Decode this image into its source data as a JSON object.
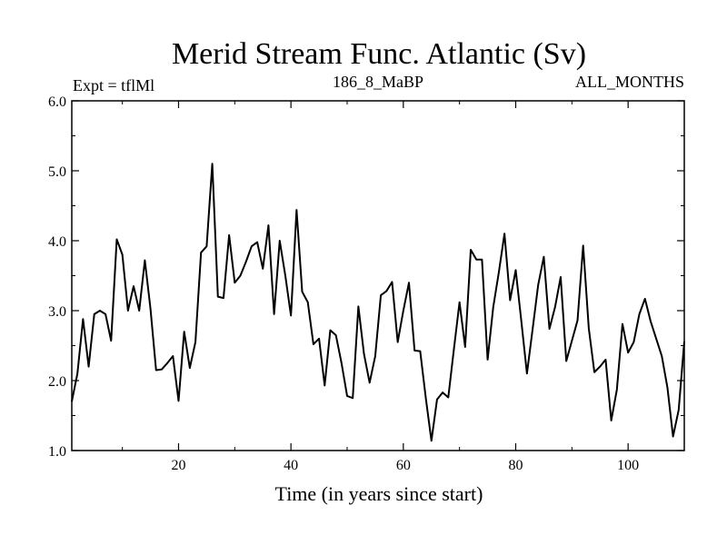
{
  "chart_data": {
    "type": "line",
    "title": "Merid Stream Func. Atlantic (Sv)",
    "subtitle_left": "Expt = tflMl",
    "subtitle_center": "186_8_MaBP",
    "subtitle_right": "ALL_MONTHS",
    "xlabel": "Time (in years since start)",
    "ylabel": "",
    "xlim": [
      1,
      110
    ],
    "ylim": [
      1.0,
      6.0
    ],
    "x_ticks": [
      20,
      40,
      60,
      80,
      100
    ],
    "x_tick_labels": [
      "20",
      "40",
      "60",
      "80",
      "100"
    ],
    "y_ticks": [
      1.0,
      2.0,
      3.0,
      4.0,
      5.0,
      6.0
    ],
    "y_tick_labels": [
      "1.0",
      "2.0",
      "3.0",
      "4.0",
      "5.0",
      "6.0"
    ],
    "grid": false,
    "line_color": "#000000",
    "series": [
      {
        "name": "Merid Stream Func. Atlantic",
        "x": [
          1,
          2,
          3,
          4,
          5,
          6,
          7,
          8,
          9,
          10,
          11,
          12,
          13,
          14,
          15,
          16,
          17,
          18,
          19,
          20,
          21,
          22,
          23,
          24,
          25,
          26,
          27,
          28,
          29,
          30,
          31,
          32,
          33,
          34,
          35,
          36,
          37,
          38,
          39,
          40,
          41,
          42,
          43,
          44,
          45,
          46,
          47,
          48,
          49,
          50,
          51,
          52,
          53,
          54,
          55,
          56,
          57,
          58,
          59,
          60,
          61,
          62,
          63,
          64,
          65,
          66,
          67,
          68,
          69,
          70,
          71,
          72,
          73,
          74,
          75,
          76,
          77,
          78,
          79,
          80,
          81,
          82,
          83,
          84,
          85,
          86,
          87,
          88,
          89,
          90,
          91,
          92,
          93,
          94,
          95,
          96,
          97,
          98,
          99,
          100,
          101,
          102,
          103,
          104,
          105,
          106,
          107,
          108,
          109,
          110
        ],
        "values": [
          1.7,
          2.1,
          2.88,
          2.2,
          2.95,
          3.0,
          2.95,
          2.57,
          4.02,
          3.8,
          3.0,
          3.35,
          3.0,
          3.72,
          3.03,
          2.15,
          2.16,
          2.25,
          2.35,
          1.71,
          2.7,
          2.18,
          2.55,
          3.83,
          3.92,
          5.1,
          3.2,
          3.18,
          4.08,
          3.4,
          3.5,
          3.7,
          3.92,
          3.98,
          3.6,
          4.22,
          2.95,
          4.0,
          3.5,
          2.93,
          4.44,
          3.27,
          3.12,
          2.52,
          2.6,
          1.93,
          2.72,
          2.65,
          2.25,
          1.78,
          1.75,
          3.06,
          2.38,
          1.97,
          2.35,
          3.22,
          3.28,
          3.41,
          2.55,
          3.0,
          3.4,
          2.43,
          2.42,
          1.75,
          1.14,
          1.73,
          1.83,
          1.76,
          2.45,
          3.12,
          2.48,
          3.87,
          3.73,
          3.73,
          2.3,
          3.05,
          3.55,
          4.1,
          3.15,
          3.58,
          2.85,
          2.1,
          2.73,
          3.37,
          3.77,
          2.74,
          3.05,
          3.48,
          2.28,
          2.57,
          2.86,
          3.93,
          2.75,
          2.12,
          2.2,
          2.3,
          1.43,
          1.87,
          2.81,
          2.4,
          2.55,
          2.95,
          3.17,
          2.85,
          2.6,
          2.35,
          1.9,
          1.2,
          1.58,
          2.56
        ]
      }
    ]
  }
}
